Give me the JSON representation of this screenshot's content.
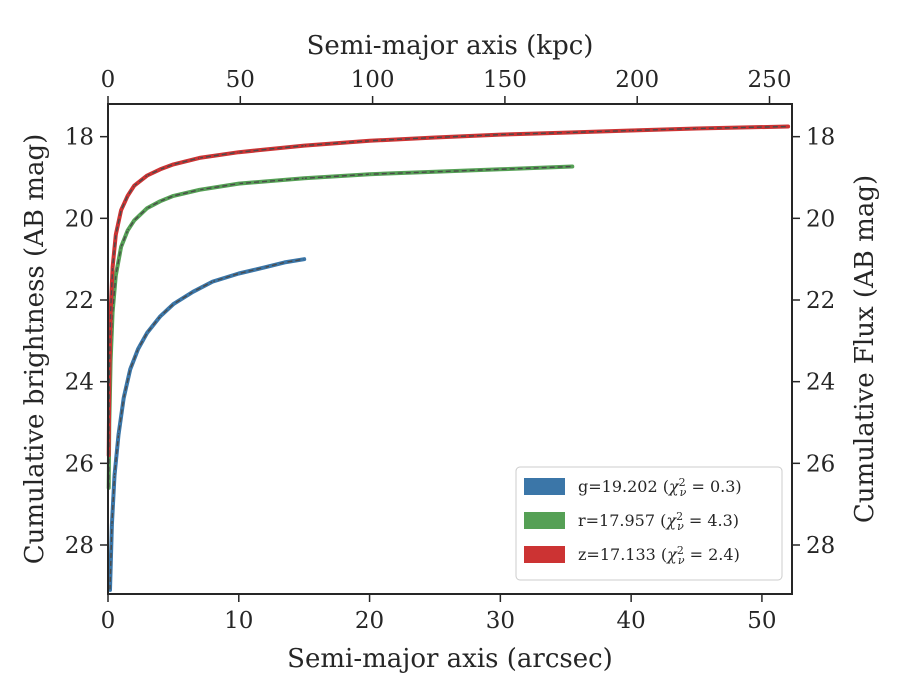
{
  "chart_data": {
    "type": "line",
    "xlabel": "Semi-major axis (arcsec)",
    "x2label": "Semi-major axis (kpc)",
    "ylabel": "Cumulative brightness (AB mag)",
    "y2label": "Cumulative Flux (AB mag)",
    "xlim": [
      0,
      52.3
    ],
    "x2lim": [
      0,
      258.5
    ],
    "ylim": [
      29.2,
      17.2
    ],
    "y_inverted": true,
    "xticks": [
      0,
      10,
      20,
      30,
      40,
      50
    ],
    "x2ticks": [
      0,
      50,
      100,
      150,
      200,
      250
    ],
    "yticks": [
      18,
      20,
      22,
      24,
      26,
      28
    ],
    "legend_position": "lower-right",
    "series": [
      {
        "name": "g=19.202 ($\\chi^2_\\nu = 0.3$)",
        "legend": {
          "band": "g=19.202 (",
          "chi": "χ",
          "nu": "ν",
          "sup": "2",
          "eq": " = 0.3)"
        },
        "color": "#3b76a8",
        "x": [
          0.15,
          0.3,
          0.5,
          0.8,
          1.2,
          1.7,
          2.3,
          3.0,
          4.0,
          5.0,
          6.5,
          8.0,
          10.0,
          12.0,
          13.5,
          15.0
        ],
        "y": [
          29.1,
          27.5,
          26.3,
          25.3,
          24.4,
          23.7,
          23.2,
          22.8,
          22.4,
          22.1,
          21.8,
          21.55,
          21.35,
          21.2,
          21.08,
          21.0
        ]
      },
      {
        "name": "r=17.957 ($\\chi^2_\\nu = 4.3$)",
        "legend": {
          "band": "r=17.957 (",
          "chi": "χ",
          "nu": "ν",
          "sup": "2",
          "eq": " = 4.3)"
        },
        "color": "#55a055",
        "x": [
          0.05,
          0.1,
          0.2,
          0.35,
          0.6,
          1.0,
          1.5,
          2.0,
          3.0,
          4.0,
          5.0,
          7.0,
          10.0,
          15.0,
          20.0,
          25.0,
          30.0,
          35.5
        ],
        "y": [
          26.6,
          25.0,
          23.5,
          22.3,
          21.4,
          20.7,
          20.3,
          20.05,
          19.75,
          19.58,
          19.45,
          19.3,
          19.15,
          19.02,
          18.92,
          18.86,
          18.8,
          18.73
        ]
      },
      {
        "name": "z=17.133 ($\\chi^2_\\nu = 2.4$)",
        "legend": {
          "band": "z=17.133 (",
          "chi": "χ",
          "nu": "ν",
          "sup": "2",
          "eq": " = 2.4)"
        },
        "color": "#cc3333",
        "x": [
          0.05,
          0.1,
          0.2,
          0.35,
          0.6,
          1.0,
          1.5,
          2.0,
          3.0,
          4.0,
          5.0,
          7.0,
          10.0,
          15.0,
          20.0,
          25.0,
          30.0,
          35.0,
          40.0,
          45.0,
          52.0
        ],
        "y": [
          25.8,
          23.9,
          22.3,
          21.2,
          20.4,
          19.8,
          19.45,
          19.2,
          18.95,
          18.8,
          18.68,
          18.52,
          18.38,
          18.22,
          18.1,
          18.02,
          17.95,
          17.9,
          17.85,
          17.8,
          17.75
        ]
      }
    ]
  }
}
